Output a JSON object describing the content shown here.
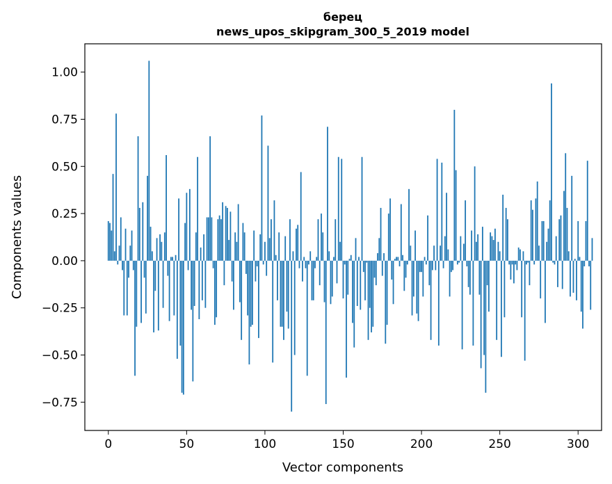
{
  "chart_data": {
    "type": "bar",
    "title": "берец",
    "subtitle": "news_upos_skipgram_300_5_2019 model",
    "xlabel": "Vector components",
    "ylabel": "Components values",
    "xlim": [
      -15,
      315
    ],
    "ylim": [
      -0.9,
      1.15
    ],
    "x_ticks": [
      0,
      50,
      100,
      150,
      200,
      250,
      300
    ],
    "x_tick_labels": [
      "0",
      "50",
      "100",
      "150",
      "200",
      "250",
      "300"
    ],
    "y_ticks": [
      -0.75,
      -0.5,
      -0.25,
      0.0,
      0.25,
      0.5,
      0.75,
      1.0
    ],
    "y_tick_labels": [
      "−0.75",
      "−0.50",
      "−0.25",
      "0.00",
      "0.25",
      "0.50",
      "0.75",
      "1.00"
    ],
    "grid": false,
    "bar_color": "#1f77b4",
    "values": [
      0.21,
      0.2,
      0.16,
      0.46,
      0.05,
      0.78,
      -0.02,
      0.08,
      0.23,
      -0.05,
      -0.29,
      0.17,
      -0.29,
      -0.09,
      0.08,
      0.16,
      -0.05,
      -0.61,
      -0.35,
      0.66,
      0.28,
      -0.33,
      0.31,
      -0.09,
      -0.28,
      0.45,
      1.06,
      0.18,
      0.05,
      -0.38,
      -0.16,
      0.12,
      -0.37,
      0.14,
      0.1,
      -0.25,
      0.15,
      0.56,
      -0.08,
      -0.32,
      0.02,
      0.02,
      -0.29,
      0.03,
      -0.52,
      0.33,
      -0.45,
      -0.7,
      -0.71,
      0.2,
      0.36,
      -0.05,
      0.38,
      -0.26,
      -0.64,
      -0.24,
      0.15,
      0.55,
      -0.31,
      0.07,
      -0.21,
      0.14,
      -0.25,
      0.23,
      0.23,
      0.66,
      0.23,
      -0.04,
      -0.34,
      -0.3,
      0.22,
      0.24,
      0.22,
      0.31,
      -0.13,
      0.29,
      0.28,
      0.11,
      0.26,
      -0.11,
      -0.26,
      0.15,
      0.1,
      0.3,
      -0.22,
      -0.42,
      0.2,
      0.15,
      -0.07,
      -0.29,
      -0.55,
      -0.35,
      -0.34,
      0.16,
      -0.11,
      -0.03,
      -0.41,
      0.14,
      0.77,
      -0.02,
      0.1,
      -0.08,
      0.61,
      0.12,
      0.22,
      -0.54,
      0.32,
      0.03,
      -0.21,
      0.15,
      -0.35,
      -0.35,
      -0.42,
      0.13,
      -0.27,
      -0.36,
      0.22,
      -0.8,
      0.05,
      -0.5,
      0.17,
      0.19,
      -0.04,
      0.47,
      -0.11,
      0.02,
      -0.04,
      -0.61,
      -0.02,
      0.05,
      -0.21,
      -0.21,
      -0.04,
      0.02,
      0.22,
      -0.13,
      0.25,
      0.15,
      -0.22,
      -0.76,
      0.71,
      0.05,
      -0.23,
      -0.19,
      0.02,
      0.22,
      -0.12,
      0.55,
      0.1,
      0.54,
      -0.2,
      -0.02,
      -0.62,
      -0.18,
      0.01,
      0.03,
      -0.33,
      -0.46,
      0.12,
      -0.24,
      0.02,
      -0.26,
      0.55,
      -0.06,
      -0.21,
      -0.01,
      -0.42,
      -0.25,
      -0.38,
      -0.35,
      -0.09,
      -0.13,
      0.04,
      0.12,
      0.28,
      -0.08,
      0.04,
      -0.44,
      -0.34,
      0.25,
      0.33,
      -0.1,
      -0.23,
      0.01,
      0.02,
      0.02,
      -0.03,
      0.3,
      0.03,
      -0.16,
      -0.09,
      -0.02,
      0.38,
      0.08,
      -0.29,
      -0.19,
      0.16,
      -0.28,
      -0.32,
      -0.06,
      -0.06,
      -0.19,
      0.02,
      -0.02,
      0.24,
      -0.13,
      -0.42,
      -0.05,
      0.08,
      -0.05,
      0.54,
      -0.45,
      0.08,
      0.52,
      -0.04,
      0.13,
      0.36,
      0.06,
      -0.19,
      -0.06,
      -0.05,
      0.8,
      0.48,
      -0.02,
      -0.01,
      0.13,
      -0.47,
      0.09,
      0.32,
      -0.03,
      -0.14,
      -0.18,
      0.16,
      -0.45,
      0.5,
      0.1,
      0.14,
      -0.18,
      -0.57,
      0.18,
      -0.5,
      -0.7,
      -0.13,
      -0.27,
      0.15,
      0.13,
      0.11,
      0.17,
      -0.42,
      0.1,
      0.05,
      -0.51,
      0.35,
      -0.3,
      0.28,
      0.22,
      -0.02,
      -0.1,
      -0.02,
      -0.12,
      -0.02,
      -0.05,
      0.07,
      0.06,
      -0.3,
      0.05,
      -0.53,
      -0.02,
      -0.01,
      -0.13,
      0.32,
      0.27,
      -0.02,
      0.33,
      0.42,
      0.08,
      -0.2,
      0.21,
      0.21,
      -0.33,
      0.1,
      0.17,
      0.32,
      0.94,
      -0.01,
      -0.02,
      0.13,
      -0.14,
      0.22,
      0.24,
      -0.15,
      0.37,
      0.57,
      0.28,
      0.05,
      -0.19,
      0.45,
      -0.17,
      0.01,
      -0.21,
      0.21,
      0.02,
      -0.27,
      -0.36,
      -0.03,
      0.21,
      0.53,
      -0.03,
      -0.26,
      0.12
    ]
  }
}
